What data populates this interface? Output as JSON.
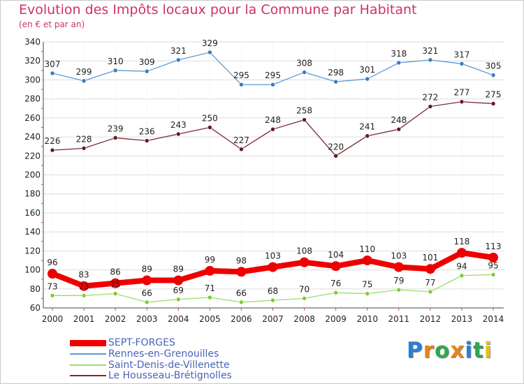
{
  "header": {
    "title": "Evolution des Impôts locaux pour la Commune par Habitant",
    "subtitle": "(en € et par an)"
  },
  "logo": {
    "text": "Proxiti"
  },
  "chart_data": {
    "type": "line",
    "title": "Evolution des Impôts locaux pour la Commune par Habitant",
    "subtitle": "(en € et par an)",
    "xlabel": "",
    "ylabel": "",
    "ylim": [
      60,
      340
    ],
    "yticks": [
      60,
      80,
      100,
      120,
      140,
      160,
      180,
      200,
      220,
      240,
      260,
      280,
      300,
      320,
      340
    ],
    "grid": true,
    "legend_position": "bottom-left",
    "x": [
      "2000",
      "2001",
      "2002",
      "2003",
      "2004",
      "2005",
      "2006",
      "2007",
      "2008",
      "2009",
      "2010",
      "2011",
      "2012",
      "2013",
      "2014"
    ],
    "series": [
      {
        "name": "SEPT-FORGES",
        "color": "#ee0000",
        "values": [
          96,
          83,
          86,
          89,
          89,
          99,
          98,
          103,
          108,
          104,
          110,
          103,
          101,
          118,
          113
        ]
      },
      {
        "name": "Rennes-en-Grenouilles",
        "color": "#5b9bd5",
        "values": [
          307,
          299,
          310,
          309,
          321,
          329,
          295,
          295,
          308,
          298,
          301,
          318,
          321,
          317,
          305
        ]
      },
      {
        "name": "Saint-Denis-de-Villenette",
        "color": "#99dd66",
        "values": [
          73,
          73,
          75,
          66,
          69,
          71,
          66,
          68,
          70,
          76,
          75,
          79,
          77,
          94,
          95
        ]
      },
      {
        "name": "Le Housseau-Brétignolles",
        "color": "#7a2a32",
        "values": [
          226,
          228,
          239,
          236,
          243,
          250,
          227,
          248,
          258,
          220,
          241,
          248,
          272,
          277,
          275
        ]
      }
    ]
  }
}
